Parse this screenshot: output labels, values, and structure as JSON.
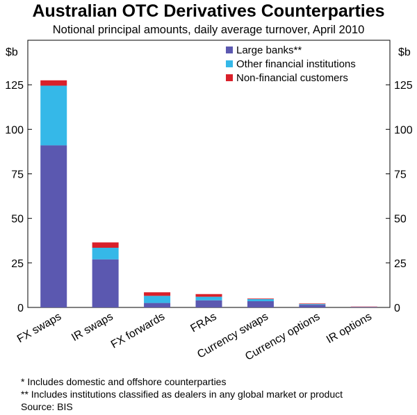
{
  "title": "Australian OTC Derivatives Counterparties",
  "subtitle": "Notional principal amounts, daily average turnover, April 2010",
  "chart_data": {
    "type": "bar",
    "stacked": true,
    "categories": [
      "FX swaps",
      "IR swaps",
      "FX forwards",
      "FRAs",
      "Currency swaps",
      "Currency options",
      "IR options"
    ],
    "series": [
      {
        "name": "Large banks**",
        "color": "#5b58b0",
        "values": [
          91,
          27,
          2.5,
          4,
          3.5,
          1.5,
          0.2
        ]
      },
      {
        "name": "Other financial institutions",
        "color": "#35b8e8",
        "values": [
          33.5,
          6.5,
          4,
          2,
          1.2,
          0.4,
          0.1
        ]
      },
      {
        "name": "Non-financial customers",
        "color": "#d9202a",
        "values": [
          3,
          3,
          2,
          1.5,
          0.3,
          0.3,
          0.2
        ]
      }
    ],
    "ylabel_left": "$b",
    "ylabel_right": "$b",
    "ylim": [
      0,
      150
    ],
    "yticks": [
      0,
      25,
      50,
      75,
      100,
      125
    ],
    "legend_position": "top-right",
    "grid": false
  },
  "footnotes": [
    "*   Includes domestic and offshore counterparties",
    "** Includes institutions classified as dealers in any global market or product",
    "Source: BIS"
  ]
}
